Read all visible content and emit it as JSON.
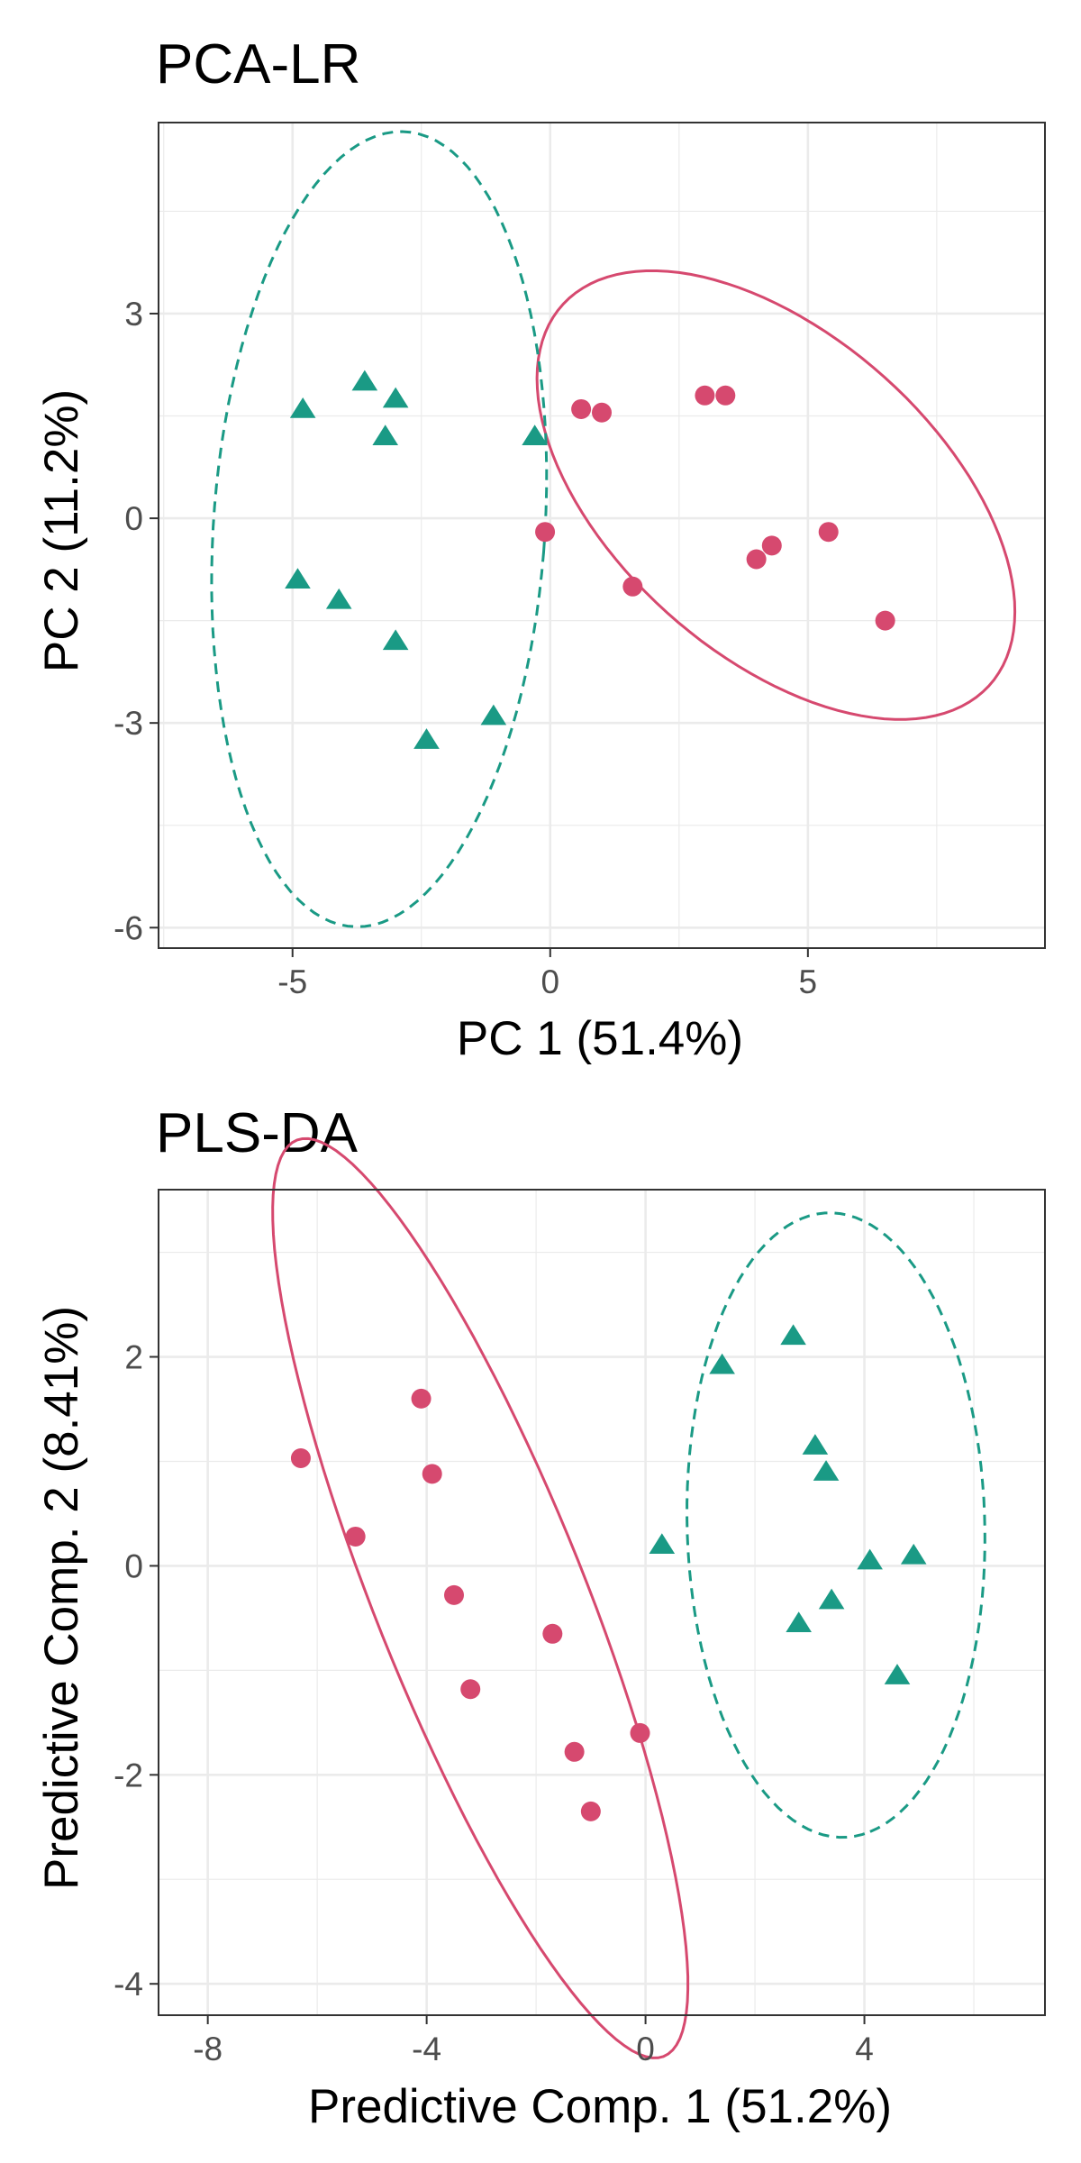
{
  "chart_data": [
    {
      "type": "scatter",
      "title": "PCA-LR",
      "xlabel": "PC 1 (51.4%)",
      "ylabel": "PC 2 (11.2%)",
      "xlim": [
        -7.6,
        9.6
      ],
      "ylim": [
        -6.3,
        5.8
      ],
      "xticks": [
        -5,
        0,
        5
      ],
      "xtick_labels": [
        "-5",
        "0",
        "5"
      ],
      "yticks": [
        -6,
        -3,
        0,
        3
      ],
      "ytick_labels": [
        "-6",
        "-3",
        "0",
        "3"
      ],
      "x_minor": [
        -7.5,
        -2.5,
        2.5,
        7.5
      ],
      "y_minor": [
        -4.5,
        -1.5,
        1.5,
        4.5
      ],
      "grid": true,
      "colors": {
        "circles": "#d6496f",
        "triangles": "#1a9a85",
        "panel_border": "#333333",
        "grid": "#ebebeb"
      },
      "series": [
        {
          "name": "circles",
          "marker": "circle",
          "color": "#d6496f",
          "x": [
            0.6,
            1.0,
            3.0,
            3.4,
            -0.1,
            1.6,
            4.0,
            4.3,
            5.4,
            6.5
          ],
          "y": [
            1.6,
            1.55,
            1.8,
            1.8,
            -0.2,
            -1.0,
            -0.6,
            -0.4,
            -0.2,
            -1.5
          ],
          "ellipse": {
            "cx": 4.38,
            "cy": 0.34,
            "rx": 5.07,
            "ry": 2.57,
            "angle": -28,
            "dash": "solid"
          }
        },
        {
          "name": "triangles",
          "marker": "triangle",
          "color": "#1a9a85",
          "x": [
            -4.8,
            -3.6,
            -3.0,
            -3.2,
            -0.3,
            -4.9,
            -4.1,
            -3.0,
            -1.1,
            -2.4
          ],
          "y": [
            1.6,
            2.0,
            1.75,
            1.2,
            1.2,
            -0.9,
            -1.2,
            -1.8,
            -2.9,
            -3.25
          ],
          "ellipse": {
            "cx": -3.32,
            "cy": -0.16,
            "rx": 3.21,
            "ry": 5.85,
            "angle": -6,
            "dash": "dashed"
          }
        }
      ]
    },
    {
      "type": "scatter",
      "title": "PLS-DA",
      "xlabel": "Predictive Comp. 1 (51.2%)",
      "ylabel": "Predictive Comp. 2 (8.41%)",
      "xlim": [
        -8.9,
        7.3
      ],
      "ylim": [
        -4.3,
        3.6
      ],
      "xticks": [
        -8,
        -4,
        0,
        4
      ],
      "xtick_labels": [
        "-8",
        "-4",
        "0",
        "4"
      ],
      "yticks": [
        -4,
        -2,
        0,
        2
      ],
      "ytick_labels": [
        "-4",
        "-2",
        "0",
        "2"
      ],
      "x_minor": [
        -6,
        -2,
        2,
        6
      ],
      "y_minor": [
        -3,
        -1,
        1,
        3
      ],
      "grid": true,
      "colors": {
        "circles": "#d6496f",
        "triangles": "#1a9a85",
        "panel_border": "#333333",
        "grid": "#ebebeb"
      },
      "series": [
        {
          "name": "circles",
          "marker": "circle",
          "color": "#d6496f",
          "x": [
            -6.3,
            -4.1,
            -3.9,
            -5.3,
            -3.5,
            -1.7,
            -3.2,
            -0.1,
            -1.3,
            -1.0
          ],
          "y": [
            1.03,
            1.6,
            0.88,
            0.28,
            -0.28,
            -0.65,
            -1.18,
            -1.6,
            -1.78,
            -2.35
          ],
          "ellipse": {
            "cx": -3.02,
            "cy": -0.31,
            "rx": 5.58,
            "ry": 1.62,
            "angle": -50,
            "dash": "solid"
          }
        },
        {
          "name": "triangles",
          "marker": "triangle",
          "color": "#1a9a85",
          "x": [
            1.4,
            2.7,
            3.1,
            3.3,
            0.3,
            4.1,
            4.9,
            2.8,
            3.4,
            4.6
          ],
          "y": [
            1.92,
            2.2,
            1.15,
            0.9,
            0.2,
            0.05,
            0.1,
            -0.55,
            -0.33,
            -1.05
          ],
          "ellipse": {
            "cx": 3.48,
            "cy": 0.39,
            "rx": 3.0,
            "ry": 2.71,
            "angle": -78,
            "dash": "dashed"
          }
        }
      ]
    }
  ]
}
